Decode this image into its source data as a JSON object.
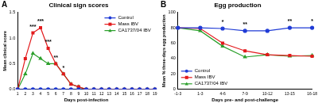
{
  "chart_data": [
    {
      "type": "line",
      "panel": "A",
      "title": "Clinical sign scores",
      "x_label": "Days post-infection",
      "y_label": "Mean clinical score",
      "categories": [
        "1",
        "2",
        "3",
        "4",
        "5",
        "6",
        "7",
        "8",
        "9",
        "10",
        "11",
        "12",
        "13",
        "14",
        "15",
        "16",
        "17",
        "18",
        "19"
      ],
      "series": [
        {
          "name": "Control",
          "color": "#1f3bd6",
          "marker": "circle",
          "values": [
            0,
            0,
            0,
            0,
            0,
            0,
            0,
            0,
            0,
            0,
            0,
            0,
            0,
            0,
            0,
            0,
            0,
            0,
            0
          ]
        },
        {
          "name": "Mass IBV",
          "color": "#e31a1c",
          "marker": "rect",
          "values": [
            0,
            0.6,
            1.1,
            1.2,
            0.8,
            0.5,
            0.3,
            0.1,
            0.05,
            0,
            0,
            0,
            0,
            0,
            0,
            0,
            0,
            0,
            0
          ]
        },
        {
          "name": "CA1737/04 IBV",
          "color": "#2ca02c",
          "marker": "triangle",
          "values": [
            0,
            0.3,
            0.7,
            0.6,
            0.5,
            0.5,
            0.3,
            0.1,
            0.05,
            0,
            0,
            0,
            0,
            0,
            0,
            0,
            0,
            0,
            0
          ]
        }
      ],
      "ylim": [
        0,
        1.5
      ],
      "yticks": [
        {
          "value": 0,
          "label": "0.0"
        },
        0.5,
        {
          "value": 1,
          "label": "1.0"
        },
        1.5
      ],
      "legend": "upper right",
      "annotations": [
        {
          "x": "3",
          "text": "***"
        },
        {
          "x": "4",
          "text": "***"
        },
        {
          "x": "5",
          "text": "***"
        },
        {
          "x": "6",
          "text": "**"
        },
        {
          "x": "7",
          "text": "*"
        }
      ]
    },
    {
      "type": "line",
      "panel": "B",
      "title": "Egg production",
      "x_label": "Days pre- and post-challenge",
      "y_label": "Mean % three-days egg production",
      "categories": [
        "-1-3",
        "1-3",
        "4-6",
        "7-9",
        "10-12",
        "13-15",
        "16-18"
      ],
      "series": [
        {
          "name": "Control",
          "color": "#1f3bd6",
          "marker": "circle",
          "values": [
            80,
            80,
            79,
            76,
            76,
            80,
            80
          ]
        },
        {
          "name": "Mass IBV",
          "color": "#e31a1c",
          "marker": "rect",
          "values": [
            80,
            79,
            60,
            50,
            45,
            44,
            43
          ]
        },
        {
          "name": "CA1737/04 IBV",
          "color": "#2ca02c",
          "marker": "triangle",
          "values": [
            80,
            76,
            56,
            42,
            45,
            43,
            44
          ]
        }
      ],
      "ylim": [
        0,
        100
      ],
      "yticks": [
        0,
        20,
        40,
        60,
        80,
        100
      ],
      "legend": "lower left",
      "annotations": [
        {
          "x": "4-6",
          "text": "*"
        },
        {
          "x": "7-9",
          "text": "**"
        },
        {
          "x": "13-15",
          "text": "**"
        },
        {
          "x": "16-18",
          "text": "*"
        }
      ]
    }
  ]
}
